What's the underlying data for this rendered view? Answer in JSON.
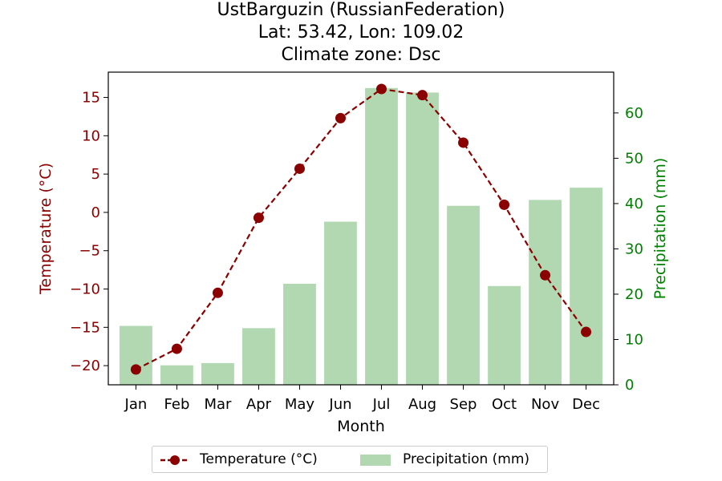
{
  "title": {
    "line1": "UstBarguzin (RussianFederation)",
    "line2": "Lat: 53.42, Lon: 109.02",
    "line3": "Climate zone: Dsc"
  },
  "colors": {
    "temperature": "#8b0000",
    "precipitation": "#b2d8b2",
    "precip_axis": "#008000"
  },
  "chart_data": {
    "type": "bar",
    "categories": [
      "Jan",
      "Feb",
      "Mar",
      "Apr",
      "May",
      "Jun",
      "Jul",
      "Aug",
      "Sep",
      "Oct",
      "Nov",
      "Dec"
    ],
    "series": [
      {
        "name": "Temperature (°C)",
        "type": "line",
        "axis": "left",
        "values": [
          -20.5,
          -17.8,
          -10.5,
          -0.7,
          5.7,
          12.3,
          16.1,
          15.3,
          9.1,
          1.0,
          -8.2,
          -15.6
        ]
      },
      {
        "name": "Precipitation (mm)",
        "type": "bar",
        "axis": "right",
        "values": [
          13,
          4.3,
          4.8,
          12.5,
          22.3,
          36,
          65.5,
          64.5,
          39.5,
          21.8,
          40.8,
          43.5
        ]
      }
    ],
    "xlabel": "Month",
    "ylabel": "Temperature (°C)",
    "ylabel_right": "Precipitation (mm)",
    "ylim": [
      -22.5,
      18.3
    ],
    "ylim_right": [
      0,
      69
    ],
    "yticks": [
      -20,
      -15,
      -10,
      -5,
      0,
      5,
      10,
      15
    ],
    "yticks_labels": [
      "−20",
      "−15",
      "−10",
      "−5",
      "0",
      "5",
      "10",
      "15"
    ],
    "yticks_right": [
      0,
      10,
      20,
      30,
      40,
      50,
      60
    ],
    "legend": "bottom-center",
    "grid": false
  }
}
